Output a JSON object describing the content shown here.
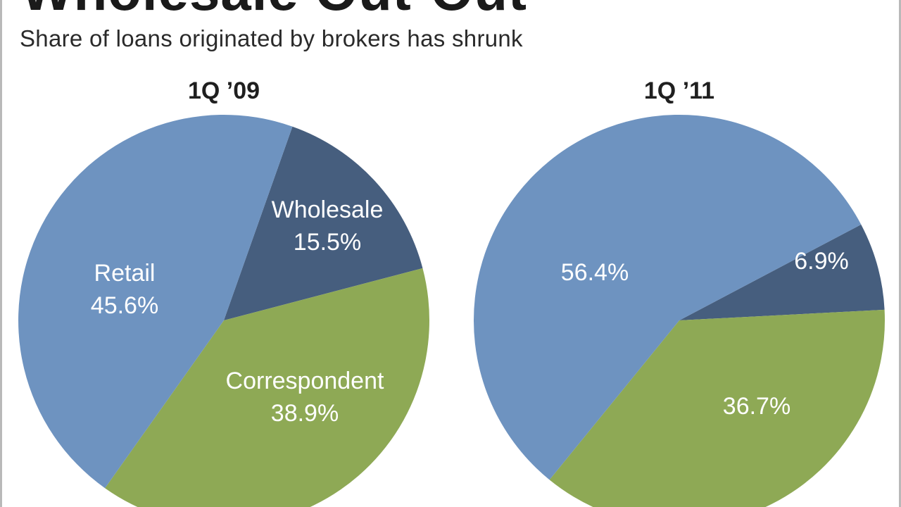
{
  "header": {
    "title": "Wholesale Out-Out",
    "subtitle": "Share of loans originated by brokers has shrunk"
  },
  "colors": {
    "Retail": "#6e93c0",
    "Wholesale": "#465e7e",
    "Correspondent": "#8ea955",
    "label": "#ffffff"
  },
  "chart_data": [
    {
      "type": "pie",
      "title": "1Q ’09",
      "slices": [
        {
          "category": "Wholesale",
          "value": 15.5,
          "name_label": "Wholesale",
          "value_label": "15.5%"
        },
        {
          "category": "Correspondent",
          "value": 38.9,
          "name_label": "Correspondent",
          "value_label": "38.9%"
        },
        {
          "category": "Retail",
          "value": 45.6,
          "name_label": "Retail",
          "value_label": "45.6%"
        }
      ]
    },
    {
      "type": "pie",
      "title": "1Q ’11",
      "slices": [
        {
          "category": "Wholesale",
          "value": 6.9,
          "name_label": "",
          "value_label": "6.9%"
        },
        {
          "category": "Correspondent",
          "value": 36.7,
          "name_label": "",
          "value_label": "36.7%"
        },
        {
          "category": "Retail",
          "value": 56.4,
          "name_label": "",
          "value_label": "56.4%"
        }
      ]
    }
  ]
}
